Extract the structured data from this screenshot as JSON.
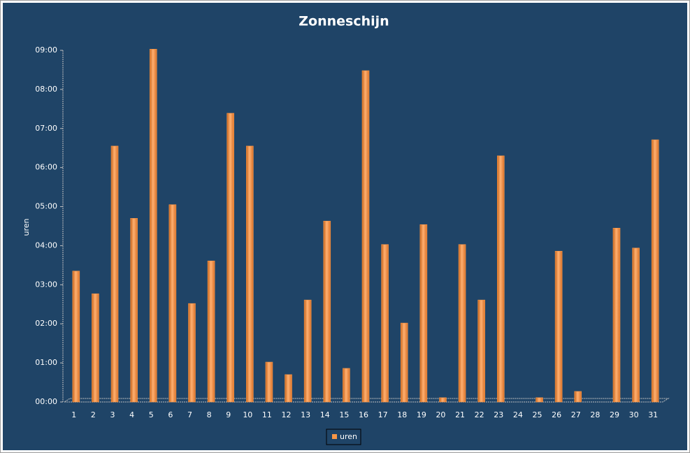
{
  "chart_data": {
    "type": "bar",
    "title": "Zonneschijn",
    "y_label": "uren",
    "categories": [
      "1",
      "2",
      "3",
      "4",
      "5",
      "6",
      "7",
      "8",
      "9",
      "10",
      "11",
      "12",
      "13",
      "14",
      "15",
      "16",
      "17",
      "18",
      "19",
      "20",
      "21",
      "22",
      "23",
      "24",
      "25",
      "26",
      "27",
      "28",
      "29",
      "30",
      "31"
    ],
    "series": [
      {
        "name": "uren",
        "color": "#f79646",
        "values": [
          3.35,
          2.77,
          6.55,
          4.7,
          9.03,
          5.05,
          2.52,
          3.61,
          7.39,
          6.55,
          1.02,
          0.7,
          2.61,
          4.63,
          0.86,
          8.48,
          4.03,
          2.02,
          4.54,
          0.11,
          4.03,
          2.61,
          6.3,
          0,
          0.11,
          3.86,
          0.27,
          0,
          4.45,
          3.94,
          6.71
        ]
      }
    ],
    "ylim": [
      0,
      9
    ],
    "yticks": [
      {
        "value": 0,
        "label": "00:00"
      },
      {
        "value": 1,
        "label": "01:00"
      },
      {
        "value": 2,
        "label": "02:00"
      },
      {
        "value": 3,
        "label": "03:00"
      },
      {
        "value": 4,
        "label": "04:00"
      },
      {
        "value": 5,
        "label": "05:00"
      },
      {
        "value": 6,
        "label": "06:00"
      },
      {
        "value": 7,
        "label": "07:00"
      },
      {
        "value": 8,
        "label": "08:00"
      },
      {
        "value": 9,
        "label": "09:00"
      }
    ],
    "grid": false,
    "legend": "bottom"
  }
}
